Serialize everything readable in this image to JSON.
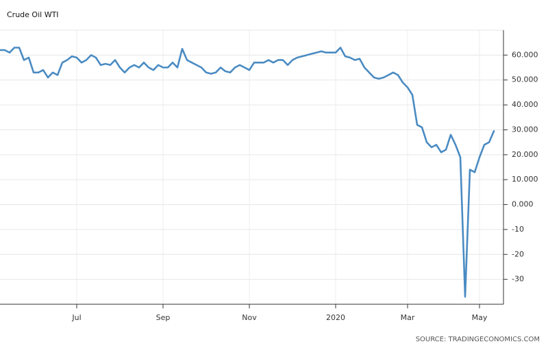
{
  "chart_data": {
    "type": "line",
    "title": "Crude Oil WTI",
    "source": "SOURCE: TRADINGECONOMICS.COM",
    "categories": [
      null,
      null,
      null,
      null,
      null,
      null,
      null,
      null,
      null,
      null,
      null,
      null,
      null,
      null,
      null,
      null,
      "Jul",
      null,
      null,
      null,
      null,
      null,
      null,
      null,
      null,
      null,
      null,
      null,
      null,
      null,
      null,
      null,
      null,
      null,
      "Sep",
      null,
      null,
      null,
      null,
      null,
      null,
      null,
      null,
      null,
      null,
      null,
      null,
      null,
      null,
      null,
      null,
      null,
      "Nov",
      null,
      null,
      null,
      null,
      null,
      null,
      null,
      null,
      null,
      null,
      null,
      null,
      null,
      null,
      null,
      null,
      null,
      "2020",
      null,
      null,
      null,
      null,
      null,
      null,
      null,
      null,
      null,
      null,
      null,
      null,
      null,
      null,
      "Mar",
      null,
      null,
      null,
      null,
      null,
      null,
      null,
      null,
      null,
      null,
      null,
      null,
      null,
      null,
      "May",
      null,
      null,
      null
    ],
    "series": [
      {
        "name": "Crude Oil WTI",
        "color": "#4a8bc2",
        "values": [
          62,
          62,
          61,
          63,
          63,
          58,
          59,
          53,
          53,
          54,
          51,
          53,
          52,
          57,
          58,
          59.5,
          59,
          57,
          58,
          60,
          59,
          56,
          56.5,
          56,
          58,
          55,
          53,
          55,
          56,
          55,
          57,
          55,
          54,
          56,
          55,
          55,
          57,
          55,
          62.5,
          58,
          57,
          56,
          55,
          53,
          52.5,
          53,
          55,
          53.5,
          53,
          55,
          56,
          55,
          54,
          57,
          57,
          57,
          58,
          57,
          58,
          58,
          56,
          58,
          59,
          59.5,
          60,
          60.5,
          61,
          61.5,
          61,
          61,
          61,
          63,
          59.5,
          59,
          58,
          58.5,
          55,
          53,
          51,
          50.5,
          51,
          52,
          53,
          52,
          49,
          47,
          44,
          32,
          31,
          25,
          23,
          24,
          21,
          22,
          28,
          24,
          19,
          -37,
          14,
          13,
          19,
          24,
          25,
          29.5
        ]
      }
    ],
    "ylim": [
      -40,
      70
    ],
    "yticks": [
      {
        "value": 60,
        "label": "60.000"
      },
      {
        "value": 50,
        "label": "50.000"
      },
      {
        "value": 40,
        "label": "40.000"
      },
      {
        "value": 30,
        "label": "30.000"
      },
      {
        "value": 20,
        "label": "20.000"
      },
      {
        "value": 10,
        "label": "10.000"
      },
      {
        "value": 0,
        "label": "0.000"
      },
      -10,
      -20,
      -30
    ],
    "grid": true
  }
}
